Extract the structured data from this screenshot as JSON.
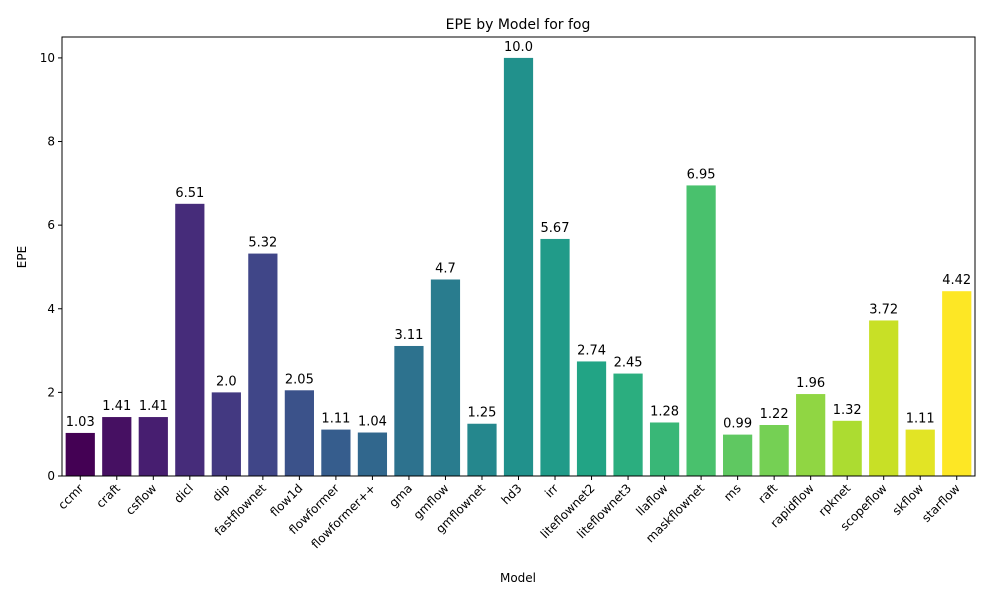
{
  "chart_data": {
    "type": "bar",
    "title": "EPE by Model for fog",
    "xlabel": "Model",
    "ylabel": "EPE",
    "ylim": [
      0,
      10.5
    ],
    "yticks": [
      "0",
      "2",
      "4",
      "6",
      "8",
      "10"
    ],
    "ytick_values": [
      0,
      2,
      4,
      6,
      8,
      10
    ],
    "grid": false,
    "legend": "none",
    "palette": "viridis",
    "categories": [
      "ccmr",
      "craft",
      "csflow",
      "dicl",
      "dip",
      "fastflownet",
      "flow1d",
      "flowformer",
      "flowformer++",
      "gma",
      "gmflow",
      "gmflownet",
      "hd3",
      "irr",
      "liteflownet2",
      "liteflownet3",
      "llaflow",
      "maskflownet",
      "ms",
      "raft",
      "rapidflow",
      "rpknet",
      "scopeflow",
      "skflow",
      "starflow"
    ],
    "values": [
      1.03,
      1.41,
      1.41,
      6.51,
      2.0,
      5.32,
      2.05,
      1.11,
      1.04,
      3.11,
      4.7,
      1.25,
      10.0,
      5.67,
      2.74,
      2.45,
      1.28,
      6.95,
      0.99,
      1.22,
      1.96,
      1.32,
      3.72,
      1.11,
      4.42
    ],
    "value_labels": [
      "1.03",
      "1.41",
      "1.41",
      "6.51",
      "2.0",
      "5.32",
      "2.05",
      "1.11",
      "1.04",
      "3.11",
      "4.7",
      "1.25",
      "10.0",
      "5.67",
      "2.74",
      "2.45",
      "1.28",
      "6.95",
      "0.99",
      "1.22",
      "1.96",
      "1.32",
      "3.72",
      "1.11",
      "4.42"
    ],
    "colors": [
      "#471365",
      "#482475",
      "#463480",
      "#414487",
      "#3b528b",
      "#355f8d",
      "#2f6c8e",
      "#2a788e",
      "#25848e",
      "#21918c",
      "#1e9c89",
      "#22a884",
      "#2fb47c",
      "#44bf70",
      "#5ec962",
      "#7ad151",
      "#9bd93c",
      "#bddf26",
      "#dfe318",
      "#fde725",
      "#471365",
      "#482475",
      "#463480",
      "#414487",
      "#3b528b"
    ]
  }
}
